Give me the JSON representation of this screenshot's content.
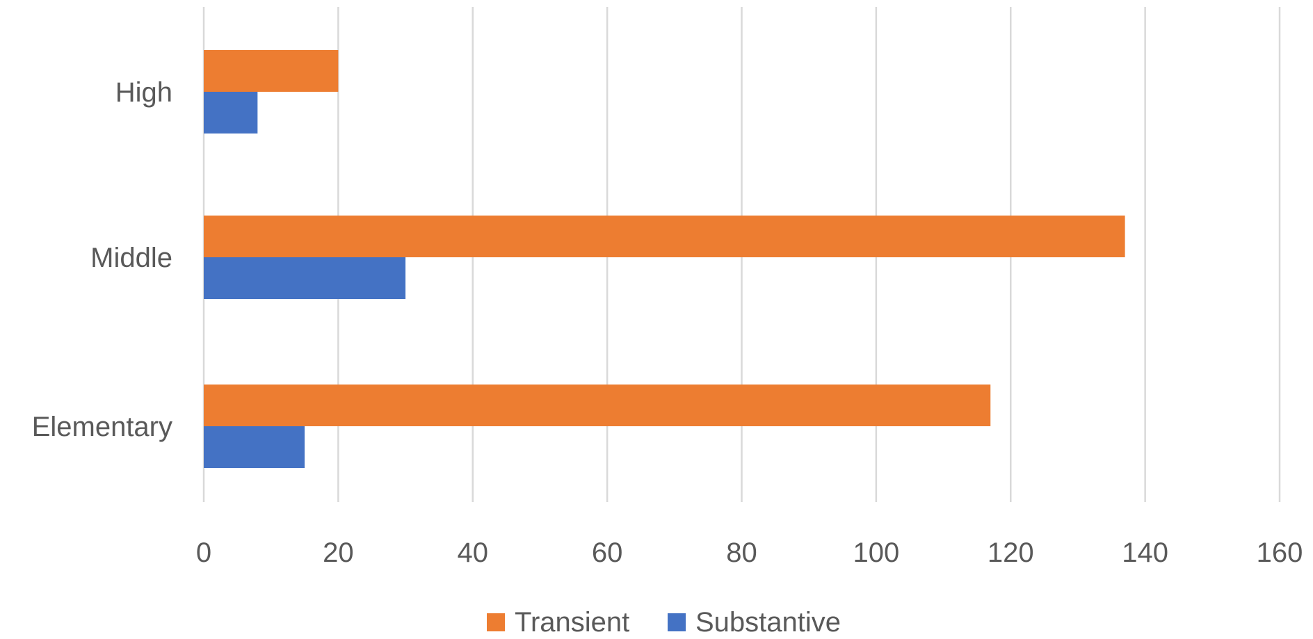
{
  "chart_data": {
    "type": "bar",
    "orientation": "horizontal",
    "title": "",
    "xlabel": "",
    "ylabel": "",
    "categories": [
      "Elementary",
      "Middle",
      "High"
    ],
    "series": [
      {
        "name": "Transient",
        "color": "#ED7D31",
        "values": [
          117,
          137,
          20
        ]
      },
      {
        "name": "Substantive",
        "color": "#4472C4",
        "values": [
          15,
          30,
          8
        ]
      }
    ],
    "xlim": [
      0,
      160
    ],
    "ticks": [
      0,
      20,
      40,
      60,
      80,
      100,
      120,
      140,
      160
    ],
    "grid": true,
    "legend": "bottom"
  }
}
